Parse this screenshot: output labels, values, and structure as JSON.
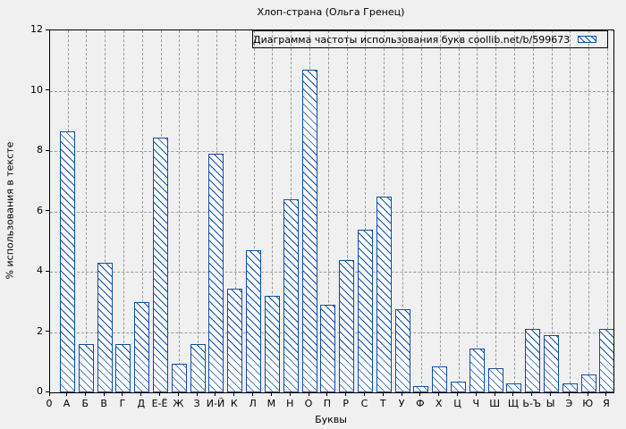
{
  "title": "Хлоп-страна (Ольга Гренец)",
  "legend": {
    "label": "Диаграмма частоты использования букв coollib.net/b/599673"
  },
  "axes": {
    "ylabel": "% использования в тексте",
    "xlabel": "Буквы",
    "origin_label": "0",
    "ytick_labels": [
      "0",
      "2",
      "4",
      "6",
      "8",
      "10",
      "12"
    ]
  },
  "colors": {
    "bar": "#0d4da8",
    "background": "#f0f0f0",
    "grid": "#9a9a9a",
    "text": "#000000"
  },
  "chart_data": {
    "type": "bar",
    "title": "Хлоп-страна (Ольга Гренец)",
    "xlabel": "Буквы",
    "ylabel": "% использования в тексте",
    "legend_entry": "Диаграмма частоты использования букв coollib.net/b/599673",
    "ylim": [
      0,
      12
    ],
    "yticks": [
      0,
      2,
      4,
      6,
      8,
      10,
      12
    ],
    "grid": true,
    "legend_position": "top-right",
    "bar_style": "blue diagonal hatch on white, blue outline",
    "categories": [
      "А",
      "Б",
      "В",
      "Г",
      "Д",
      "Е-Ё",
      "Ж",
      "З",
      "И-Й",
      "К",
      "Л",
      "М",
      "Н",
      "О",
      "П",
      "Р",
      "С",
      "Т",
      "У",
      "Ф",
      "Х",
      "Ц",
      "Ч",
      "Ш",
      "Щ",
      "Ь-Ъ",
      "Ы",
      "Э",
      "Ю",
      "Я"
    ],
    "values": [
      8.65,
      1.6,
      4.3,
      1.6,
      3.0,
      8.45,
      0.95,
      1.6,
      7.9,
      3.45,
      4.7,
      3.2,
      6.4,
      10.7,
      2.9,
      4.4,
      5.4,
      6.5,
      2.75,
      0.2,
      0.85,
      0.35,
      1.45,
      0.8,
      0.3,
      2.1,
      1.9,
      0.3,
      0.6,
      2.1
    ]
  }
}
